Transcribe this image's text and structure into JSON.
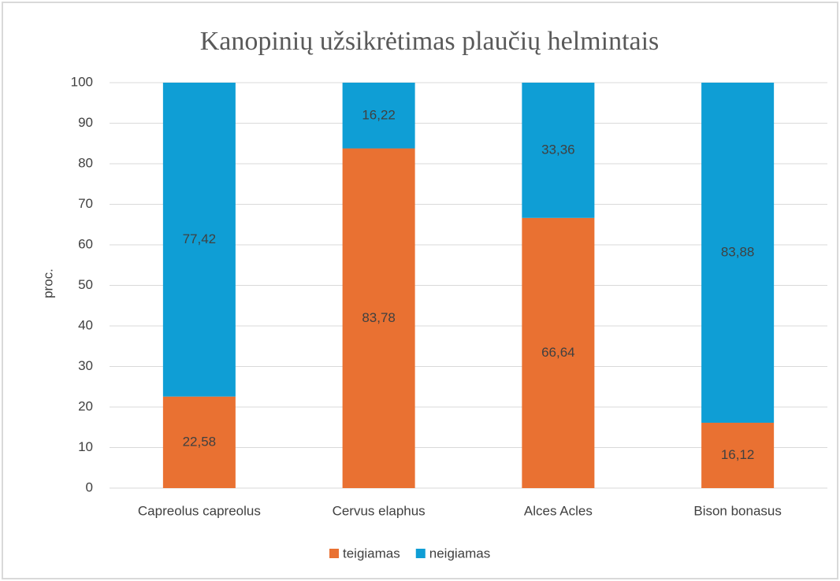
{
  "chart_data": {
    "type": "stacked_bar",
    "title": "Kanopinių užsikrėtimas plaučių helmintais",
    "y_label": "proc.",
    "categories": [
      "Capreolus capreolus",
      "Cervus elaphus",
      "Alces Acles",
      "Bison bonasus"
    ],
    "series": [
      {
        "name": "teigiamas",
        "color": "#e97132",
        "values": [
          22.58,
          83.78,
          66.64,
          16.12
        ],
        "value_labels": [
          "22,58",
          "83,78",
          "66,64",
          "16,12"
        ]
      },
      {
        "name": "neigiamas",
        "color": "#0f9ed5",
        "values": [
          77.42,
          16.22,
          33.36,
          83.88
        ],
        "value_labels": [
          "77,42",
          "16,22",
          "33,36",
          "83,88"
        ]
      }
    ],
    "ylim": [
      0,
      100
    ],
    "yticks": [
      0,
      10,
      20,
      30,
      40,
      50,
      60,
      70,
      80,
      90,
      100
    ],
    "grid": true,
    "legend": "bottom"
  }
}
